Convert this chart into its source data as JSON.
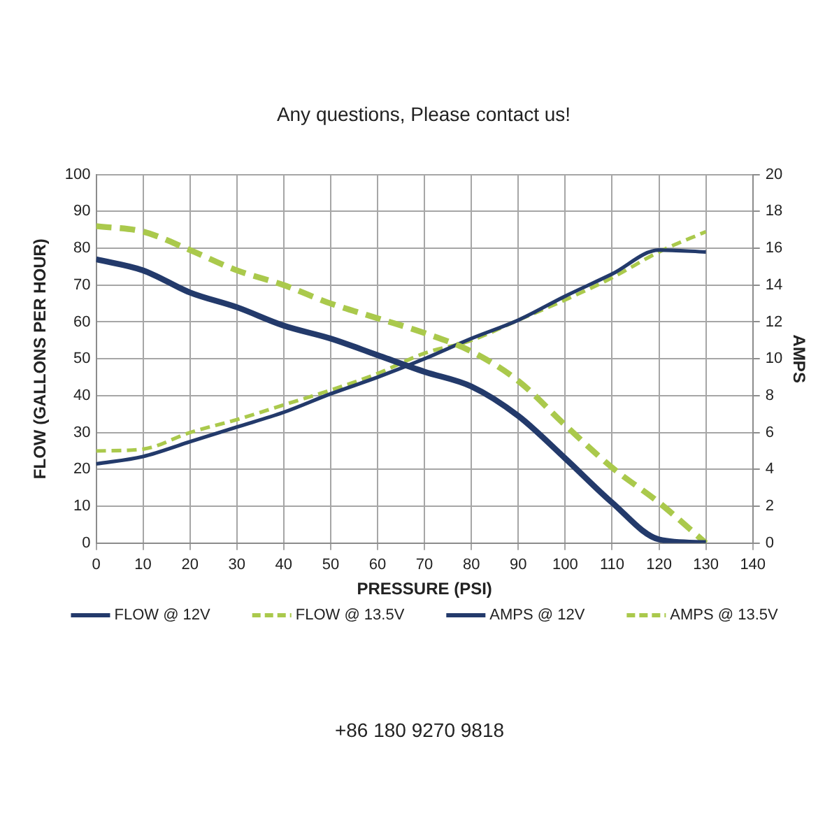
{
  "chart_data": {
    "type": "line",
    "title": "Any questions, Please contact us!",
    "xlabel": "PRESSURE (PSI)",
    "ylabel": "FLOW (GALLONS PER HOUR)",
    "y2label": "AMPS",
    "x": [
      0,
      10,
      20,
      30,
      40,
      50,
      60,
      70,
      80,
      90,
      100,
      110,
      120,
      130
    ],
    "series": [
      {
        "name": "FLOW @ 12V",
        "color": "#233a6b",
        "line_style": "solid",
        "values": [
          77,
          74,
          68,
          64,
          59,
          55.5,
          51,
          46.5,
          42.5,
          34.5,
          23,
          11,
          1,
          0
        ]
      },
      {
        "name": "FLOW @ 13.5V",
        "color": "#aac94c",
        "line_style": "dashed",
        "values": [
          86,
          84.5,
          79.5,
          74,
          70,
          65,
          61,
          57,
          52,
          44,
          32,
          20.5,
          11,
          0
        ]
      },
      {
        "name": "AMPS @ 12V",
        "color": "#233a6b",
        "line_style": "solid",
        "axis": "y2",
        "values": [
          4.3,
          4.7,
          5.5,
          6.3,
          7.1,
          8.1,
          9,
          10,
          11.1,
          12.1,
          13.4,
          14.6,
          15.9,
          15.8
        ]
      },
      {
        "name": "AMPS @ 13.5V",
        "color": "#aac94c",
        "line_style": "dashed",
        "axis": "y2",
        "values": [
          5,
          5.1,
          6,
          6.7,
          7.5,
          8.3,
          9.2,
          10.3,
          11,
          12.1,
          13.2,
          14.4,
          15.8,
          16.9
        ]
      }
    ],
    "xlim": [
      0,
      140
    ],
    "xticks": [
      0,
      10,
      20,
      30,
      40,
      50,
      60,
      70,
      80,
      90,
      100,
      110,
      120,
      130,
      140
    ],
    "ylim": [
      0,
      100
    ],
    "yticks": [
      0,
      10,
      20,
      30,
      40,
      50,
      60,
      70,
      80,
      90,
      100
    ],
    "y2lim": [
      0,
      20
    ],
    "y2ticks": [
      0,
      2,
      4,
      6,
      8,
      10,
      12,
      14,
      16,
      18,
      20
    ],
    "grid": true,
    "legend": "bottom",
    "marker": "none",
    "annotations": [
      "+86 180 9270 9818"
    ]
  }
}
